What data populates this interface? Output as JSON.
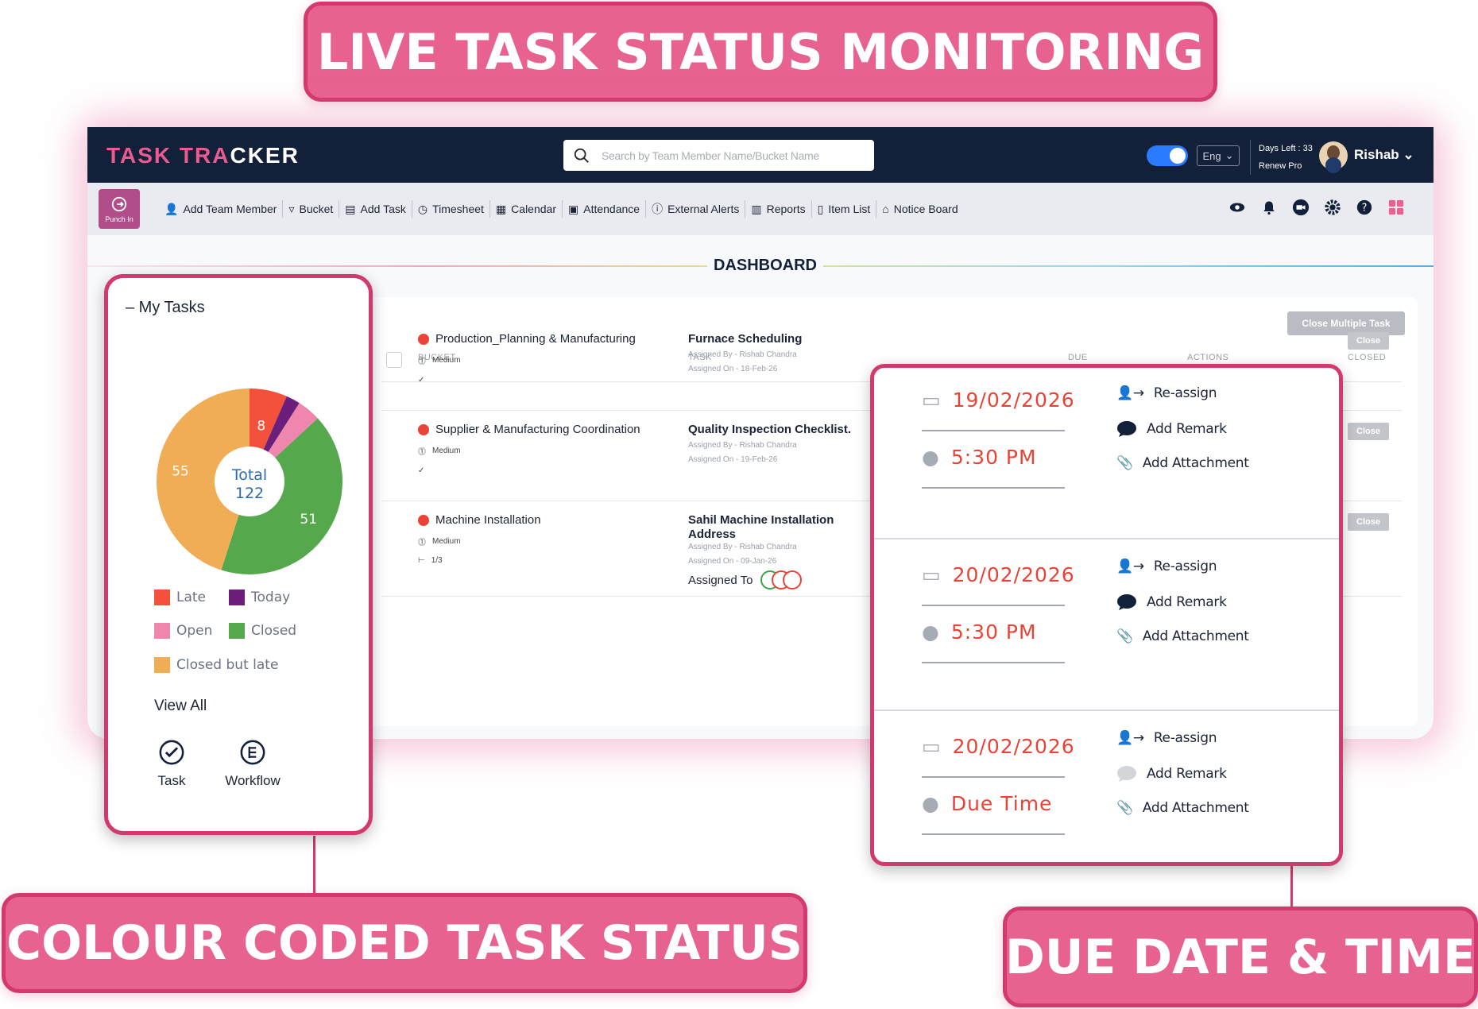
{
  "banners": {
    "top": "LIVE TASK STATUS MONITORING",
    "left": "COLOUR CODED TASK STATUS",
    "right": "DUE DATE & TIME"
  },
  "header": {
    "logo_part1": "TASK TRA",
    "logo_part2": "CKER",
    "search_placeholder": "Search by Team Member Name/Bucket Name",
    "language": "Eng",
    "days_left": "Days Left : 33",
    "renew": "Renew Pro",
    "user_name": "Rishab"
  },
  "toolbar": {
    "punch_label": "Punch In",
    "items": [
      "Add Team Member",
      "Bucket",
      "Add Task",
      "Timesheet",
      "Calendar",
      "Attendance",
      "External Alerts",
      "Reports",
      "Item List",
      "Notice Board"
    ]
  },
  "dashboard": {
    "title": "DASHBOARD",
    "close_multiple": "Close Multiple Task",
    "columns": {
      "bucket": "BUCKET",
      "task": "TASK",
      "due": "DUE",
      "actions": "ACTIONS",
      "closed": "CLOSED"
    },
    "rows": [
      {
        "bucket": "Production_Planning & Manufacturing",
        "priority": "Medium",
        "task": "Furnace Scheduling",
        "assigned_by": "Assigned By - Rishab Chandra",
        "assigned_on": "Assigned On - 18-Feb-26",
        "close": "Close"
      },
      {
        "bucket": "Supplier & Manufacturing Coordination",
        "priority": "Medium",
        "task": "Quality Inspection Checklist.",
        "assigned_by": "Assigned By - Rishab Chandra",
        "assigned_on": "Assigned On - 19-Feb-26",
        "close": "Close"
      },
      {
        "bucket": "Machine Installation",
        "priority": "Medium",
        "subtasks": "1/3",
        "task_line1": "Sahil Machine Installation",
        "task_line2": "Address",
        "assigned_by": "Assigned By - Rishab Chandra",
        "assigned_on": "Assigned On - 09-Jan-26",
        "assigned_to": "Assigned To",
        "close": "Close"
      }
    ]
  },
  "my_tasks": {
    "title": "– My Tasks",
    "total_label": "Total",
    "total": "122",
    "chart_data": {
      "type": "pie",
      "categories": [
        "Late",
        "Today",
        "Open",
        "Closed",
        "Closed but late"
      ],
      "values": [
        8,
        3,
        5,
        51,
        55
      ],
      "colors": [
        "#f4513d",
        "#6b1f7a",
        "#ee86ad",
        "#56a84d",
        "#f0ad55"
      ],
      "value_labels": [
        "8",
        "",
        "",
        "51",
        "55"
      ],
      "style": "donut"
    },
    "legend": [
      "Late",
      "Today",
      "Open",
      "Closed",
      "Closed but late"
    ],
    "view_all": "View All",
    "task_label": "Task",
    "workflow_label": "Workflow"
  },
  "due": {
    "items": [
      {
        "date": "19/02/2026",
        "time": "5:30 PM",
        "remark_color": "#13203a"
      },
      {
        "date": "20/02/2026",
        "time": "5:30 PM",
        "remark_color": "#13203a"
      },
      {
        "date": "20/02/2026",
        "time": "Due Time",
        "remark_color": "#d3d5d9"
      }
    ],
    "actions": {
      "reassign": "Re-assign",
      "remark": "Add Remark",
      "attachment": "Add Attachment"
    }
  },
  "colors": {
    "accent": "#d23a6f",
    "banner": "#e8628f",
    "navy": "#13203a",
    "due_red": "#ea4335"
  }
}
